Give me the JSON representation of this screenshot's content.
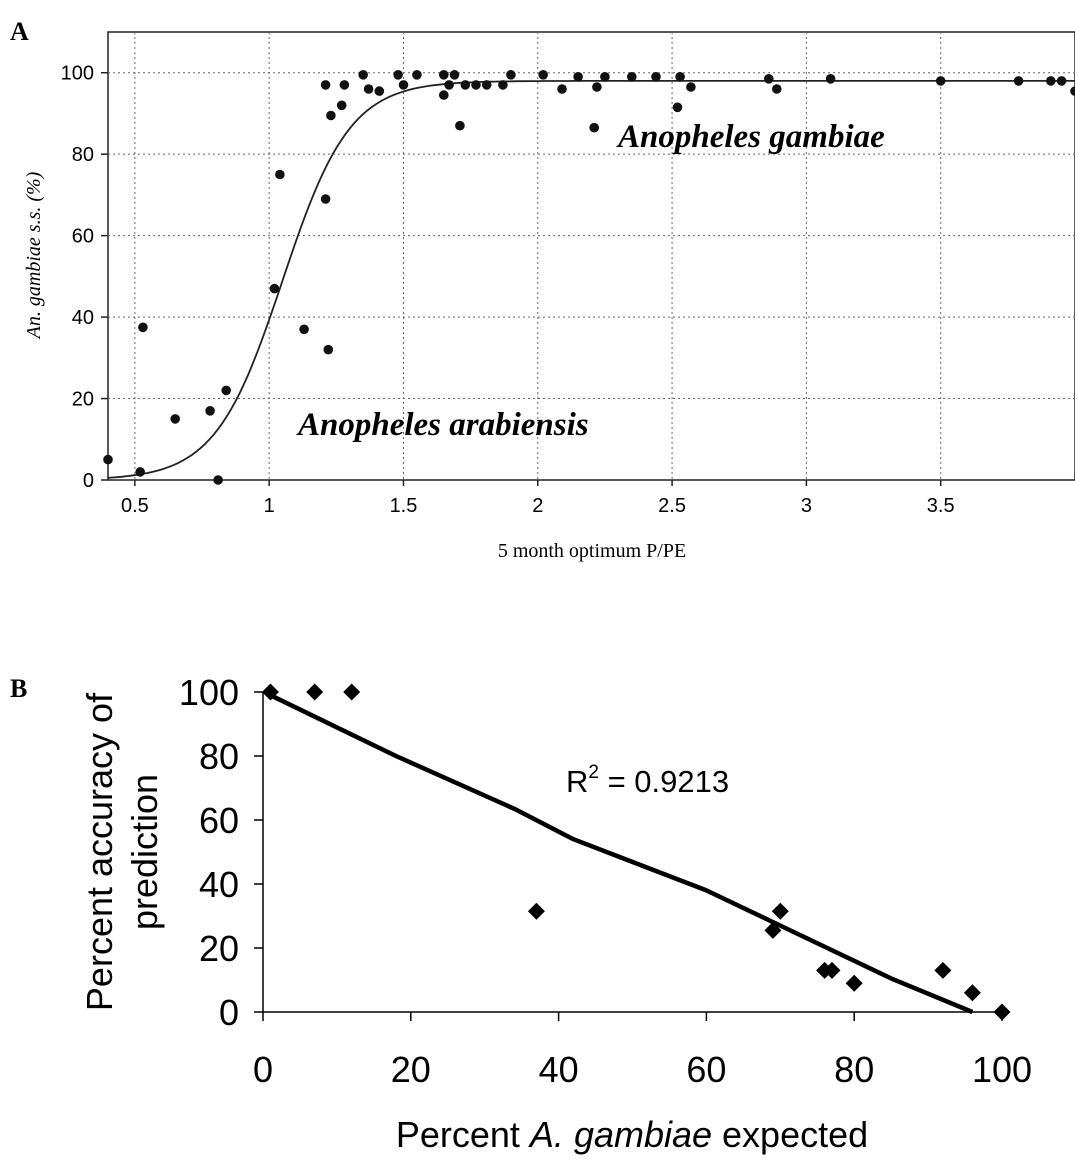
{
  "chart_data": [
    {
      "panel_label": "A",
      "type": "scatter",
      "xlabel": "5 month optimum P/PE",
      "ylabel": "An. gambiae s.s. (%)",
      "xlim": [
        0.4,
        4.0
      ],
      "ylim": [
        0,
        110
      ],
      "x_ticks": [
        0.5,
        1,
        1.5,
        2,
        2.5,
        3,
        3.5
      ],
      "x_tick_labels": [
        "0.5",
        "1",
        "1.5",
        "2",
        "2.5",
        "3",
        "3.5"
      ],
      "y_ticks": [
        0,
        20,
        40,
        60,
        80,
        100
      ],
      "y_tick_labels": [
        "0",
        "20",
        "40",
        "60",
        "80",
        "100"
      ],
      "grid": true,
      "annotations": [
        "Anopheles gambiae",
        "Anopheles arabiensis"
      ],
      "curve": {
        "kind": "logistic",
        "asymptote": 98,
        "midpoint": 1.05,
        "slope": 8
      },
      "points": [
        [
          0.4,
          5
        ],
        [
          0.52,
          2
        ],
        [
          0.53,
          37.5
        ],
        [
          0.65,
          15
        ],
        [
          0.78,
          17
        ],
        [
          0.81,
          0
        ],
        [
          0.84,
          22
        ],
        [
          1.02,
          47
        ],
        [
          1.04,
          75
        ],
        [
          1.13,
          37
        ],
        [
          1.21,
          97
        ],
        [
          1.21,
          69
        ],
        [
          1.22,
          32
        ],
        [
          1.23,
          89.5
        ],
        [
          1.27,
          92
        ],
        [
          1.28,
          97
        ],
        [
          1.35,
          99.5
        ],
        [
          1.37,
          96
        ],
        [
          1.41,
          95.5
        ],
        [
          1.48,
          99.5
        ],
        [
          1.5,
          97
        ],
        [
          1.55,
          99.5
        ],
        [
          1.65,
          99.5
        ],
        [
          1.65,
          94.5
        ],
        [
          1.67,
          97
        ],
        [
          1.69,
          99.5
        ],
        [
          1.71,
          87
        ],
        [
          1.73,
          97
        ],
        [
          1.77,
          97
        ],
        [
          1.81,
          97
        ],
        [
          1.87,
          97
        ],
        [
          1.9,
          99.5
        ],
        [
          2.02,
          99.5
        ],
        [
          2.09,
          96
        ],
        [
          2.15,
          99
        ],
        [
          2.21,
          86.5
        ],
        [
          2.22,
          96.5
        ],
        [
          2.25,
          99
        ],
        [
          2.35,
          99
        ],
        [
          2.44,
          99
        ],
        [
          2.52,
          91.5
        ],
        [
          2.53,
          99
        ],
        [
          2.57,
          96.5
        ],
        [
          2.86,
          98.5
        ],
        [
          2.89,
          96
        ],
        [
          3.09,
          98.5
        ],
        [
          3.5,
          98
        ],
        [
          3.79,
          98
        ],
        [
          3.91,
          98
        ],
        [
          3.95,
          98
        ],
        [
          4.0,
          95.5
        ]
      ]
    },
    {
      "panel_label": "B",
      "type": "scatter",
      "xlabel_parts": [
        "Percent ",
        "A. gambiae",
        " expected"
      ],
      "ylabel_lines": [
        "Percent accuracy of",
        "prediction"
      ],
      "xlim": [
        0,
        100
      ],
      "ylim": [
        0,
        100
      ],
      "x_ticks": [
        0,
        20,
        40,
        60,
        80,
        100
      ],
      "y_ticks": [
        0,
        20,
        40,
        60,
        80,
        100
      ],
      "r_squared_label": [
        "R",
        "2",
        " = 0.9213"
      ],
      "trend_line": [
        [
          1,
          99
        ],
        [
          18,
          80
        ],
        [
          34,
          63.5
        ],
        [
          42,
          54
        ],
        [
          60,
          38
        ],
        [
          70,
          27
        ],
        [
          85,
          10.5
        ],
        [
          96,
          0
        ]
      ],
      "points": [
        [
          1,
          100
        ],
        [
          7,
          100
        ],
        [
          12,
          100
        ],
        [
          37,
          31.5
        ],
        [
          69,
          25.5
        ],
        [
          70,
          31.5
        ],
        [
          76,
          13
        ],
        [
          77,
          13
        ],
        [
          80,
          9
        ],
        [
          92,
          13
        ],
        [
          96,
          6
        ],
        [
          100,
          0
        ]
      ]
    }
  ]
}
